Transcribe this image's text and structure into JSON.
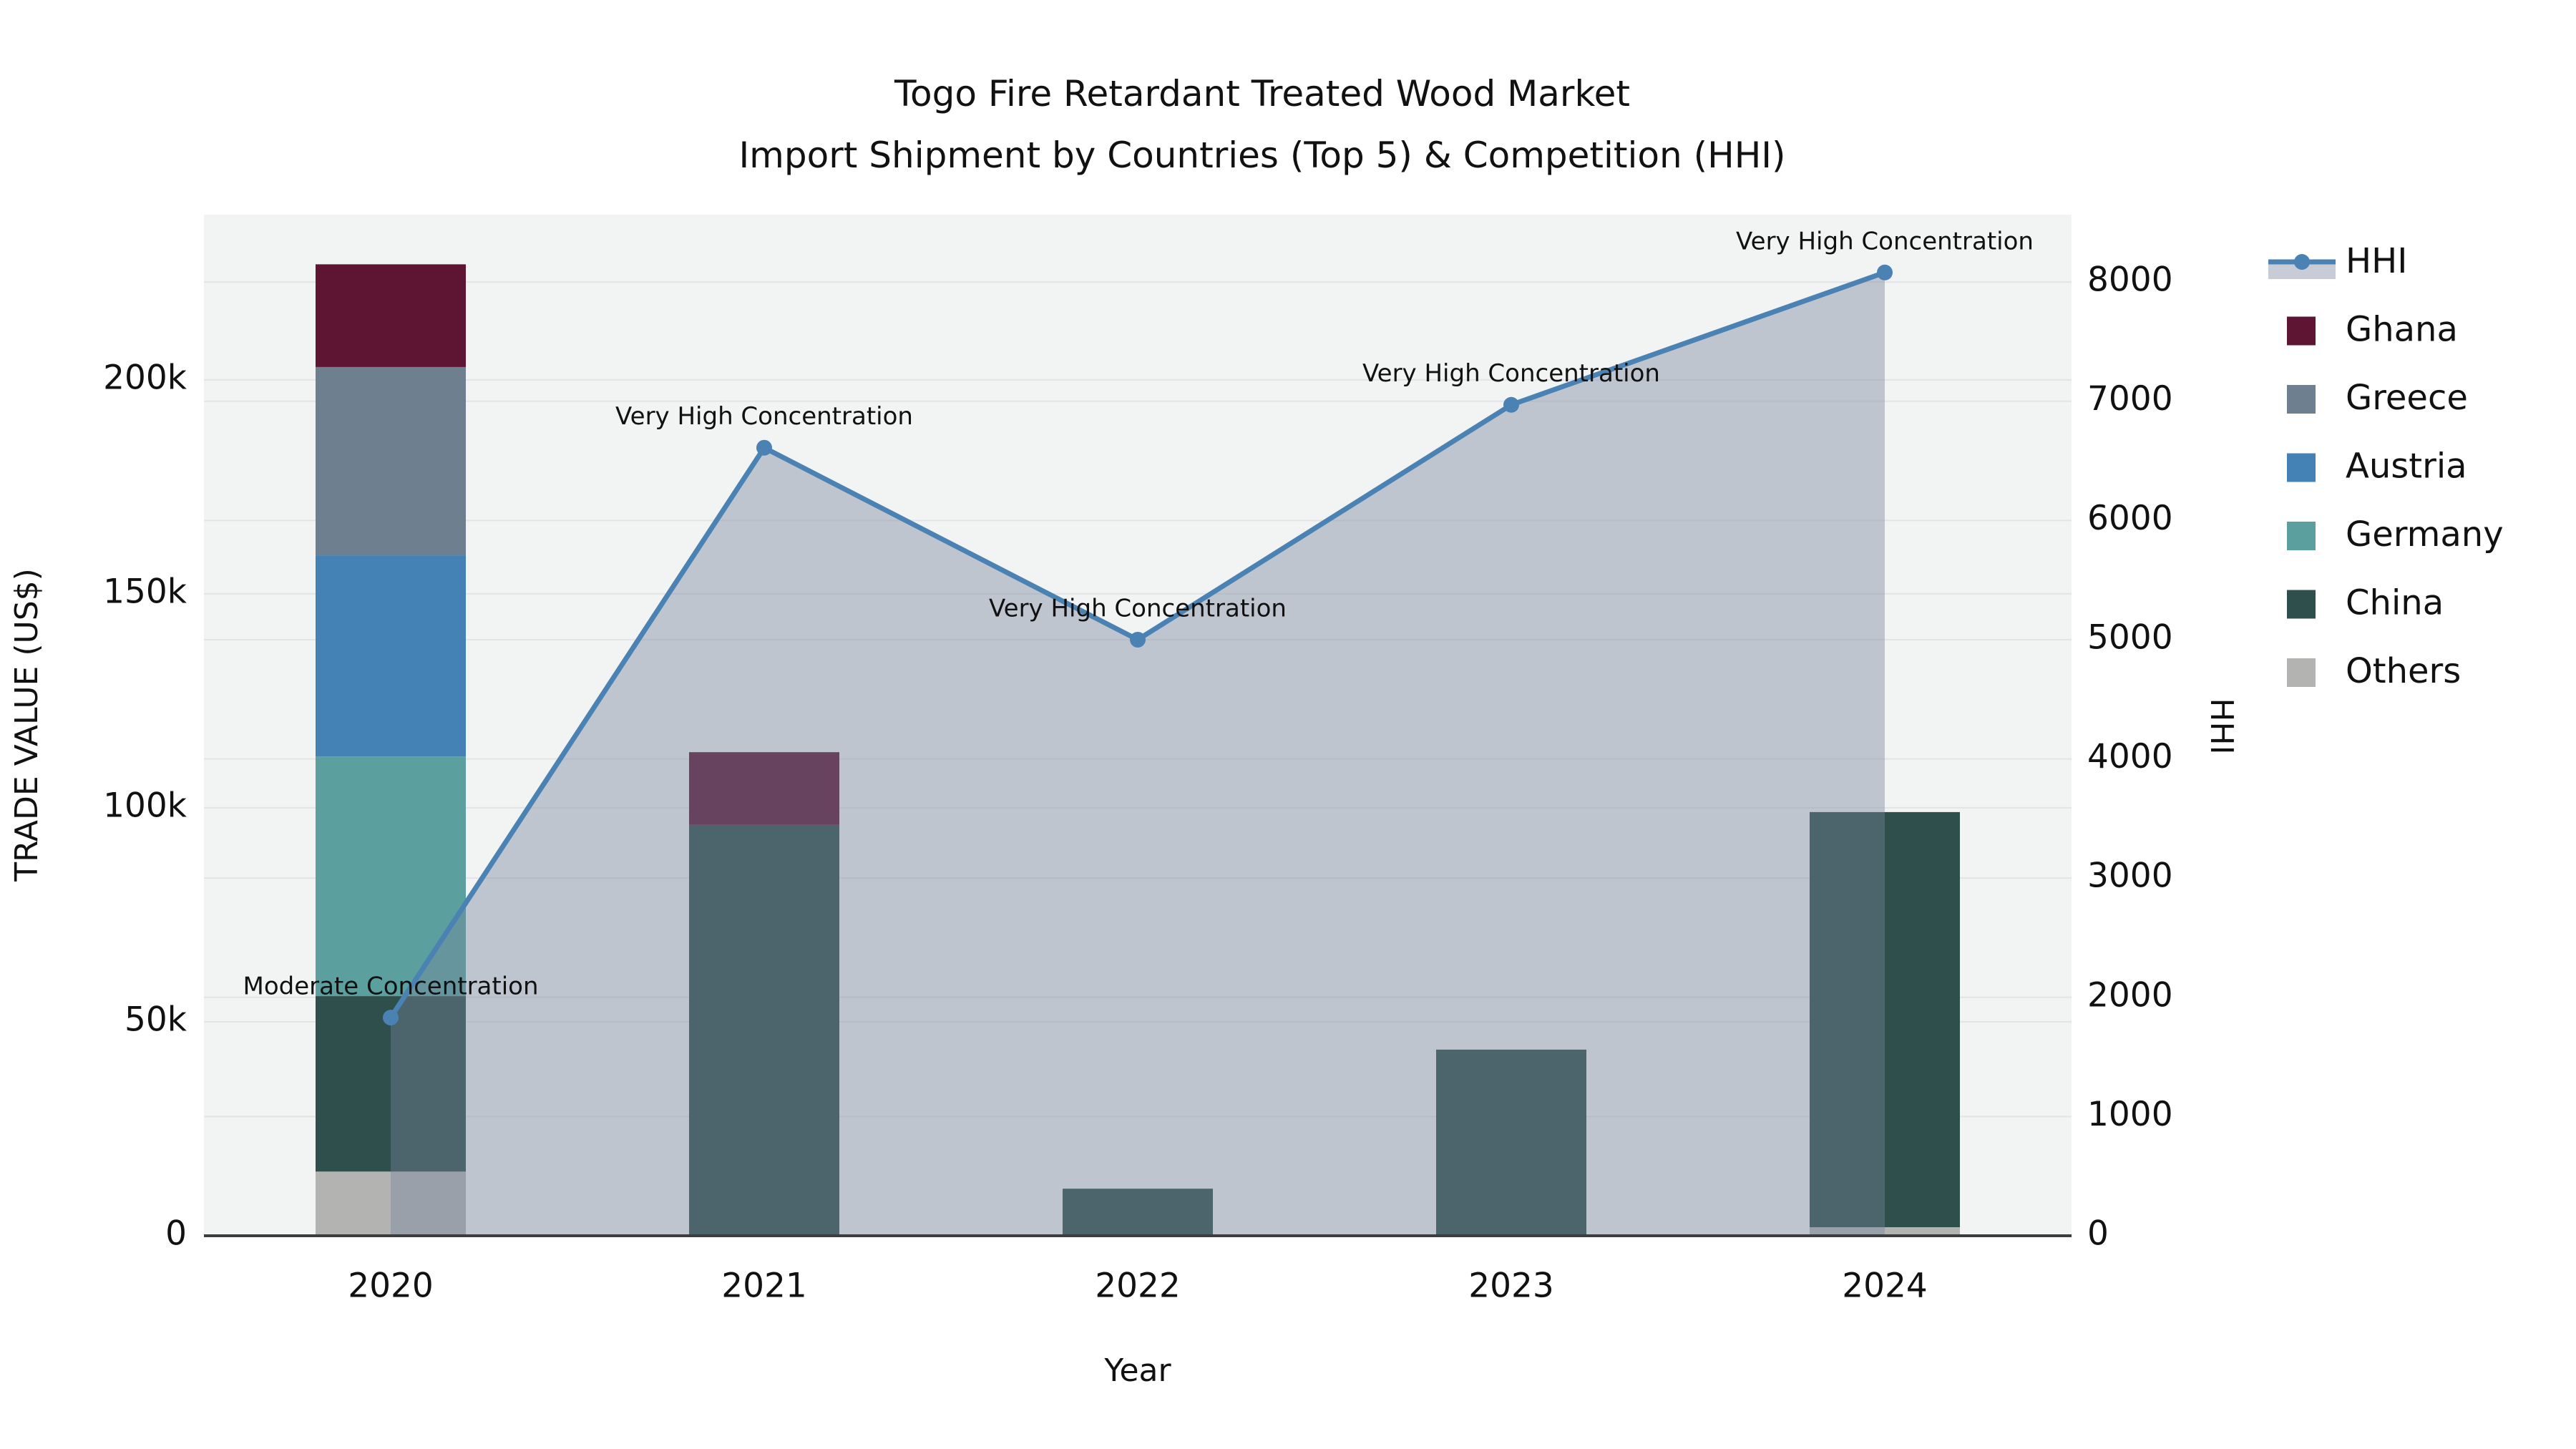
{
  "title": {
    "line1": "Togo Fire Retardant Treated Wood Market",
    "line2": "Import Shipment by Countries (Top 5) & Competition (HHI)"
  },
  "chart_data": {
    "type": "bar+line",
    "categories": [
      "2020",
      "2021",
      "2022",
      "2023",
      "2024"
    ],
    "bar_series": [
      {
        "name": "Others",
        "color": "#b3b4b2",
        "values": [
          15000,
          0,
          0,
          0,
          2000
        ]
      },
      {
        "name": "China",
        "color": "#2e4f4b",
        "values": [
          41000,
          96000,
          11000,
          43500,
          97000
        ]
      },
      {
        "name": "Germany",
        "color": "#5ba09e",
        "values": [
          56000,
          0,
          0,
          0,
          0
        ]
      },
      {
        "name": "Austria",
        "color": "#4482b6",
        "values": [
          47000,
          0,
          0,
          0,
          0
        ]
      },
      {
        "name": "Greece",
        "color": "#6e7f8f",
        "values": [
          44000,
          0,
          0,
          0,
          0
        ]
      },
      {
        "name": "Ghana",
        "color": "#5e1433",
        "values": [
          24000,
          17000,
          0,
          0,
          0
        ]
      }
    ],
    "line_series": {
      "name": "HHI",
      "color": "#4a82b4",
      "fill_color": "rgba(120,134,158,0.42)",
      "values": [
        1830,
        6610,
        5000,
        6970,
        8080
      ]
    },
    "point_annotations": [
      "Moderate Concentration",
      "Very High Concentration",
      "Very High Concentration",
      "Very High Concentration",
      "Very High Concentration"
    ],
    "x_axis": {
      "title": "Year"
    },
    "left_axis": {
      "title": "TRADE VALUE (US$)",
      "tick_values": [
        0,
        50000,
        100000,
        150000,
        200000
      ],
      "tick_labels": [
        "0",
        "50k",
        "100k",
        "150k",
        "200k"
      ],
      "range": [
        0,
        238600
      ]
    },
    "right_axis": {
      "title": "HHI",
      "tick_values": [
        0,
        1000,
        2000,
        3000,
        4000,
        5000,
        6000,
        7000,
        8000
      ],
      "tick_labels": [
        "0",
        "1000",
        "2000",
        "3000",
        "4000",
        "5000",
        "6000",
        "7000",
        "8000"
      ],
      "range": [
        0,
        8565
      ]
    },
    "legend": {
      "entries": [
        {
          "label": "HHI",
          "type": "line"
        },
        {
          "label": "Ghana",
          "type": "swatch"
        },
        {
          "label": "Greece",
          "type": "swatch"
        },
        {
          "label": "Austria",
          "type": "swatch"
        },
        {
          "label": "Germany",
          "type": "swatch"
        },
        {
          "label": "China",
          "type": "swatch"
        },
        {
          "label": "Others",
          "type": "swatch"
        }
      ]
    },
    "plot_background": "#f2f3f3",
    "grid_color": "#e3e4e7",
    "axis_line_color": "#3d3d3d",
    "legend_position": "right",
    "grid": true
  }
}
